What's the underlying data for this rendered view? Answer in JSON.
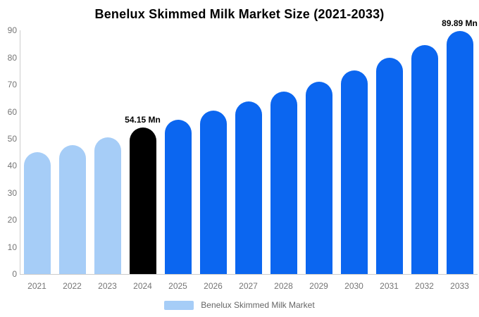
{
  "title": "Benelux Skimmed Milk Market Size (2021-2033)",
  "legend": {
    "label": "Benelux Skimmed Milk Market",
    "swatch_color": "#a6cdf7"
  },
  "colors": {
    "historical": "#a6cdf7",
    "base_year": "#000000",
    "forecast": "#0b66f0",
    "axis_line": "#cccccc",
    "tick_text": "#757575",
    "legend_text": "#666666",
    "annotation_text": "#000000",
    "background": "#ffffff"
  },
  "chart_data": {
    "type": "bar",
    "title": "Benelux Skimmed Milk Market Size (2021-2033)",
    "categories": [
      "2021",
      "2022",
      "2023",
      "2024",
      "2025",
      "2026",
      "2027",
      "2028",
      "2029",
      "2030",
      "2031",
      "2032",
      "2033"
    ],
    "values": [
      45.0,
      47.6,
      50.5,
      54.15,
      57.1,
      60.3,
      63.7,
      67.3,
      71.2,
      75.3,
      79.8,
      84.5,
      89.89
    ],
    "bar_roles": [
      "historical",
      "historical",
      "historical",
      "base_year",
      "forecast",
      "forecast",
      "forecast",
      "forecast",
      "forecast",
      "forecast",
      "forecast",
      "forecast",
      "forecast"
    ],
    "annotations": [
      {
        "index": 3,
        "text": "54.15 Mn"
      },
      {
        "index": 12,
        "text": "89.89 Mn"
      }
    ],
    "xlabel": "",
    "ylabel": "",
    "ylim": [
      0,
      90
    ],
    "yticks": [
      0,
      10,
      20,
      30,
      40,
      50,
      60,
      70,
      80,
      90
    ],
    "grid": false,
    "legend_position": "bottom",
    "unit": "Mn"
  }
}
